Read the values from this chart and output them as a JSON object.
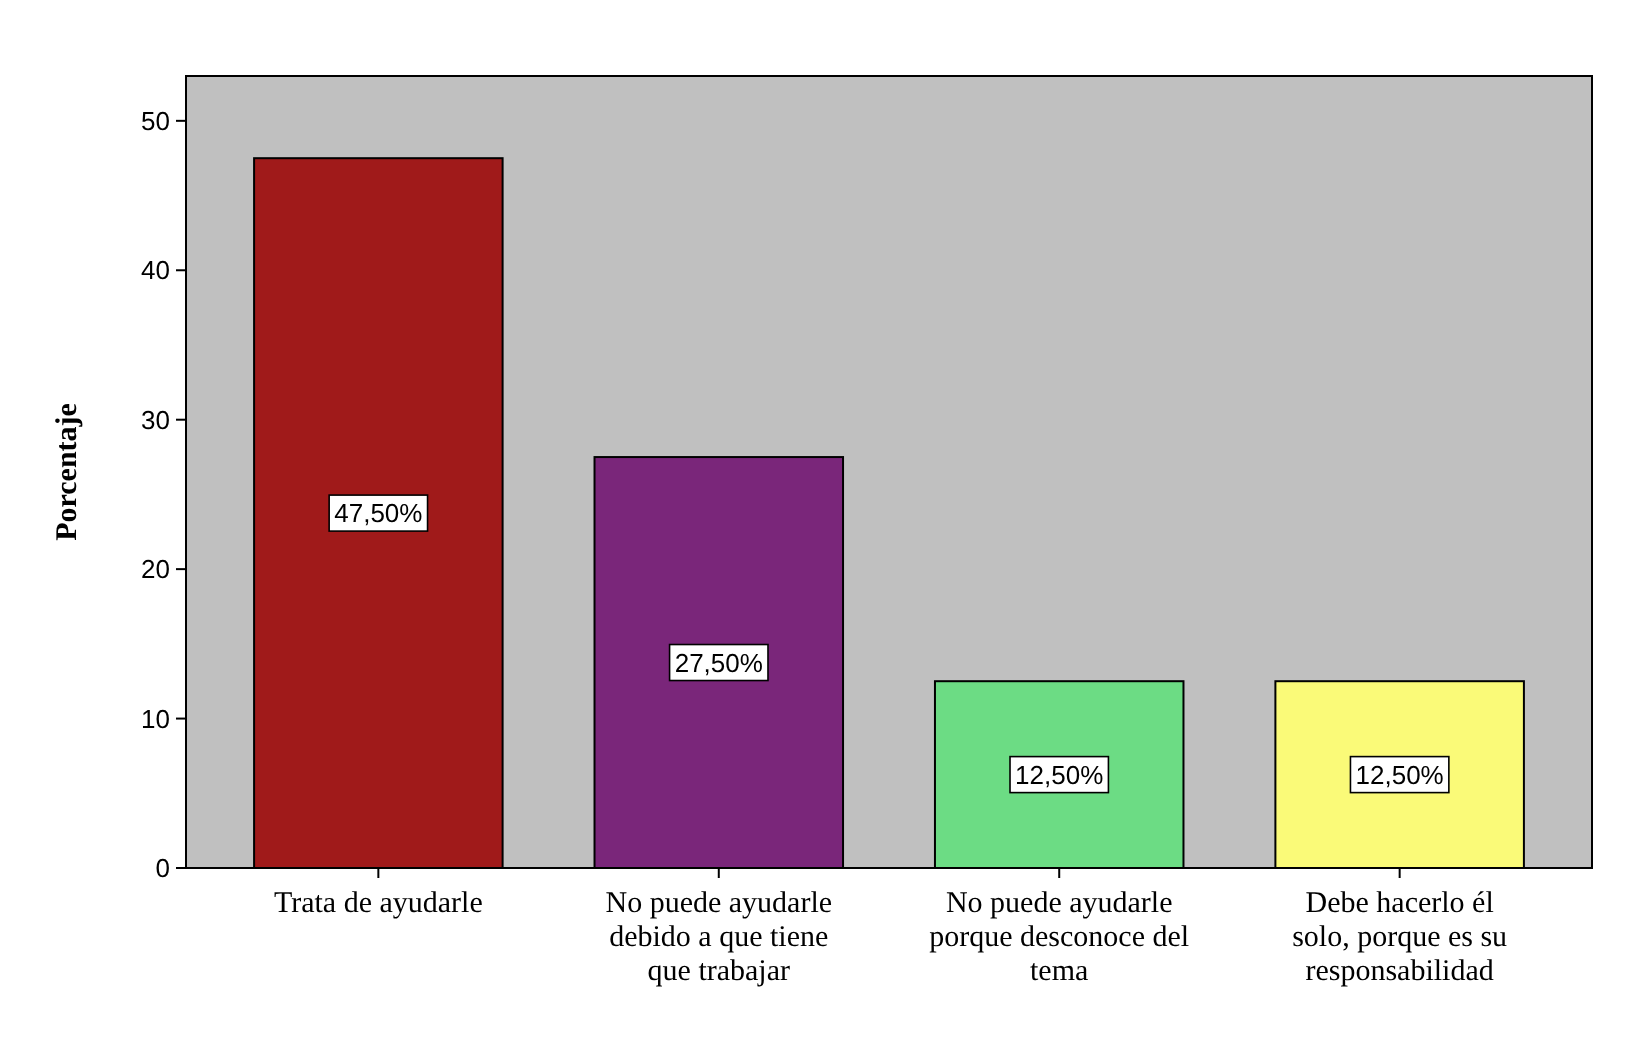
{
  "chart_data": {
    "type": "bar",
    "ylabel": "Porcentaje",
    "categories": [
      "Trata de ayudarle",
      "No puede ayudarle debido a que tiene que trabajar",
      "No puede ayudarle porque desconoce del tema",
      "Debe hacerlo él solo, porque es su responsabilidad"
    ],
    "values": [
      47.5,
      27.5,
      12.5,
      12.5
    ],
    "colors": [
      "#a01a1a",
      "#7a267a",
      "#6cdc84",
      "#fafa78"
    ],
    "value_labels": [
      "47,50%",
      "27,50%",
      "12,50%",
      "12,50%"
    ],
    "ylim": [
      0,
      53
    ],
    "yticks": [
      0,
      10,
      20,
      30,
      40,
      50
    ],
    "grid": false
  }
}
